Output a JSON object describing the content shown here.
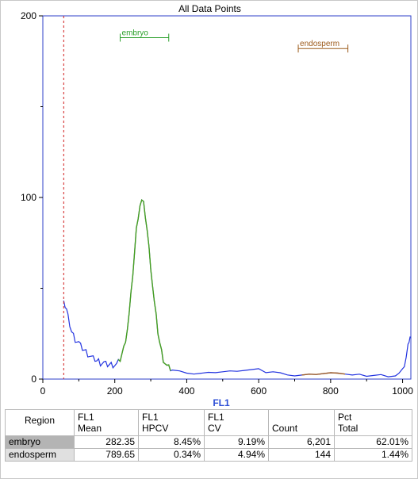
{
  "chart_data": {
    "type": "histogram",
    "title": "All Data Points",
    "xlabel": "FL1",
    "xlim": [
      0,
      1023
    ],
    "ylim": [
      0,
      200
    ],
    "x_ticks": [
      0,
      200,
      400,
      600,
      800,
      1000
    ],
    "y_ticks": [
      0,
      100,
      200
    ],
    "threshold_x": 58,
    "regions": [
      {
        "name": "embryo",
        "x_start": 215,
        "x_end": 350,
        "color": "#2aa02a",
        "level": 188
      },
      {
        "name": "endosperm",
        "x_start": 710,
        "x_end": 848,
        "color": "#9c5a1a",
        "level": 182
      }
    ],
    "curve": {
      "main_color": "#2233e0",
      "embryo_color": "#46a01e",
      "endosperm_color": "#a0602a",
      "points": [
        [
          58,
          45
        ],
        [
          62,
          40
        ],
        [
          66,
          38
        ],
        [
          70,
          34
        ],
        [
          75,
          30
        ],
        [
          80,
          26
        ],
        [
          85,
          24
        ],
        [
          90,
          22
        ],
        [
          95,
          21
        ],
        [
          100,
          20
        ],
        [
          105,
          18
        ],
        [
          110,
          17
        ],
        [
          115,
          16
        ],
        [
          120,
          15
        ],
        [
          125,
          14
        ],
        [
          130,
          13
        ],
        [
          135,
          12
        ],
        [
          140,
          11
        ],
        [
          145,
          11
        ],
        [
          150,
          10
        ],
        [
          155,
          10
        ],
        [
          160,
          9
        ],
        [
          165,
          9
        ],
        [
          170,
          9
        ],
        [
          175,
          8
        ],
        [
          180,
          8
        ],
        [
          185,
          8
        ],
        [
          190,
          8
        ],
        [
          195,
          8
        ],
        [
          200,
          8
        ],
        [
          205,
          8
        ],
        [
          210,
          9
        ],
        [
          215,
          11
        ],
        [
          220,
          14
        ],
        [
          225,
          17
        ],
        [
          230,
          22
        ],
        [
          235,
          28
        ],
        [
          240,
          36
        ],
        [
          245,
          46
        ],
        [
          250,
          58
        ],
        [
          255,
          70
        ],
        [
          260,
          82
        ],
        [
          265,
          90
        ],
        [
          270,
          96
        ],
        [
          275,
          98
        ],
        [
          280,
          96
        ],
        [
          285,
          90
        ],
        [
          290,
          82
        ],
        [
          295,
          72
        ],
        [
          300,
          62
        ],
        [
          305,
          52
        ],
        [
          310,
          42
        ],
        [
          315,
          34
        ],
        [
          320,
          26
        ],
        [
          325,
          20
        ],
        [
          330,
          15
        ],
        [
          335,
          11
        ],
        [
          340,
          9
        ],
        [
          345,
          7
        ],
        [
          350,
          6
        ],
        [
          355,
          5
        ],
        [
          360,
          5
        ],
        [
          380,
          4
        ],
        [
          400,
          4
        ],
        [
          420,
          3
        ],
        [
          440,
          3
        ],
        [
          460,
          3
        ],
        [
          480,
          4
        ],
        [
          500,
          4
        ],
        [
          520,
          4
        ],
        [
          540,
          5
        ],
        [
          560,
          5
        ],
        [
          580,
          5
        ],
        [
          600,
          5
        ],
        [
          620,
          4
        ],
        [
          640,
          4
        ],
        [
          660,
          3
        ],
        [
          680,
          3
        ],
        [
          700,
          2
        ],
        [
          720,
          2
        ],
        [
          740,
          2
        ],
        [
          760,
          3
        ],
        [
          780,
          3
        ],
        [
          800,
          3
        ],
        [
          820,
          4
        ],
        [
          840,
          3
        ],
        [
          860,
          2
        ],
        [
          880,
          2
        ],
        [
          900,
          2
        ],
        [
          920,
          2
        ],
        [
          940,
          2
        ],
        [
          960,
          2
        ],
        [
          980,
          2
        ],
        [
          990,
          3
        ],
        [
          1000,
          5
        ],
        [
          1005,
          8
        ],
        [
          1010,
          12
        ],
        [
          1015,
          18
        ],
        [
          1018,
          22
        ],
        [
          1021,
          24
        ]
      ]
    }
  },
  "table": {
    "headers": [
      [
        "Region",
        ""
      ],
      [
        "FL1",
        "Mean"
      ],
      [
        "FL1",
        "HPCV"
      ],
      [
        "FL1",
        "CV"
      ],
      [
        "",
        "Count"
      ],
      [
        "Pct",
        "Total"
      ]
    ],
    "rows": [
      [
        "embryo",
        "282.35",
        "8.45%",
        "9.19%",
        "6,201",
        "62.01%"
      ],
      [
        "endosperm",
        "789.65",
        "0.34%",
        "4.94%",
        "144",
        "1.44%"
      ]
    ]
  }
}
